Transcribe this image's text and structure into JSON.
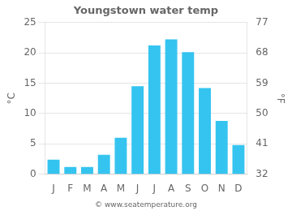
{
  "chart_data": {
    "type": "bar",
    "title": "Youngstown water temp",
    "categories": [
      "J",
      "F",
      "M",
      "A",
      "M",
      "J",
      "J",
      "A",
      "S",
      "O",
      "N",
      "D"
    ],
    "values": [
      2.4,
      1.2,
      1.2,
      3.2,
      6.0,
      14.5,
      21.2,
      22.2,
      20.1,
      14.2,
      8.8,
      4.8
    ],
    "color": "#35c4f0",
    "ylabel": "°C",
    "y2label": "°F",
    "ylim": [
      0,
      25
    ],
    "yticks": [
      0,
      5,
      10,
      15,
      20,
      25
    ],
    "y2lim": [
      32,
      77
    ],
    "y2ticks": [
      32,
      41,
      50,
      59,
      68,
      77
    ],
    "grid": true,
    "annotations": [
      "© www.seatemperature.org"
    ]
  }
}
